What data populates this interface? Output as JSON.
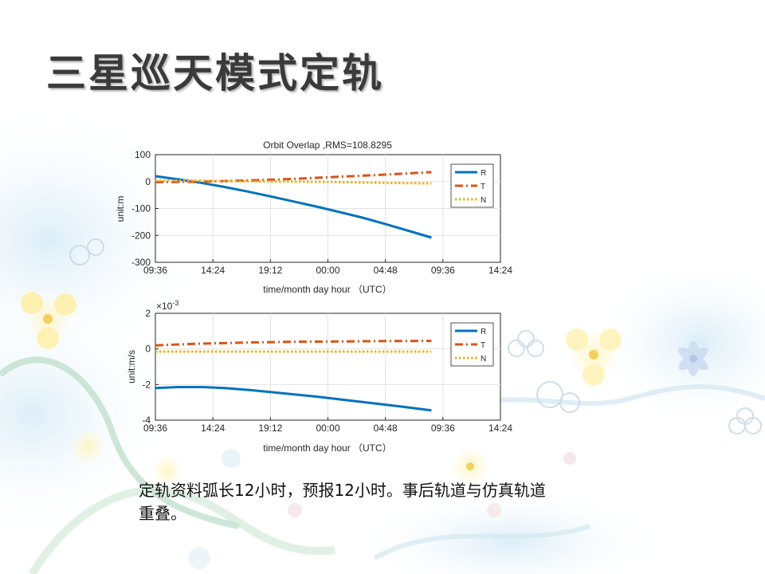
{
  "slide": {
    "title": "三星巡天模式定轨",
    "caption": "定轨资料弧长12小时，预报12小时。事后轨道与仿真轨道重叠。"
  },
  "chart_data": [
    {
      "type": "line",
      "title": "Orbit Overlap ,RMS=108.8295",
      "xlabel": "time/month day hour （UTC）",
      "ylabel": "unit:m",
      "x_ticks": [
        "09:36",
        "14:24",
        "19:12",
        "00:00",
        "04:48",
        "09:36",
        "14:24"
      ],
      "xlim": [
        0,
        30
      ],
      "x_unit": "hours since first tick 09:36",
      "ylim": [
        -300,
        100
      ],
      "y_ticks": [
        100,
        0,
        -100,
        -200,
        -300
      ],
      "grid": true,
      "legend_position": "top-right",
      "series": [
        {
          "name": "R",
          "color": "#0072BD",
          "style": "solid",
          "x": [
            0,
            2,
            4,
            6,
            8,
            10,
            12,
            14,
            16,
            18,
            20,
            22,
            24
          ],
          "y": [
            20,
            8,
            -5,
            -20,
            -37,
            -55,
            -74,
            -93,
            -113,
            -134,
            -158,
            -183,
            -208
          ]
        },
        {
          "name": "T",
          "color": "#D95319",
          "style": "dashdot",
          "x": [
            0,
            4,
            8,
            12,
            16,
            20,
            24
          ],
          "y": [
            -2,
            0,
            4,
            10,
            18,
            26,
            35
          ]
        },
        {
          "name": "N",
          "color": "#EDB120",
          "style": "dotted",
          "x": [
            0,
            4,
            8,
            12,
            16,
            20,
            24
          ],
          "y": [
            4,
            3,
            1,
            0,
            -2,
            -5,
            -7
          ]
        }
      ]
    },
    {
      "type": "line",
      "title": "",
      "exponent_label": "×10",
      "exponent_power": "-3",
      "xlabel": "time/month day hour （UTC）",
      "ylabel": "unit:m/s",
      "x_ticks": [
        "09:36",
        "14:24",
        "19:12",
        "00:00",
        "04:48",
        "09:36",
        "14:24"
      ],
      "xlim": [
        0,
        30
      ],
      "x_unit": "hours since first tick 09:36",
      "ylim": [
        -4,
        2
      ],
      "y_ticks": [
        2,
        0,
        -2,
        -4
      ],
      "grid": true,
      "legend_position": "top-right",
      "series": [
        {
          "name": "R",
          "color": "#0072BD",
          "style": "solid",
          "x": [
            0,
            2,
            4,
            6,
            8,
            10,
            12,
            14,
            16,
            18,
            20,
            22,
            24
          ],
          "y": [
            -2.2,
            -2.14,
            -2.14,
            -2.2,
            -2.3,
            -2.42,
            -2.55,
            -2.68,
            -2.83,
            -2.98,
            -3.13,
            -3.29,
            -3.45
          ]
        },
        {
          "name": "T",
          "color": "#D95319",
          "style": "dashdot",
          "x": [
            0,
            4,
            8,
            12,
            16,
            20,
            24
          ],
          "y": [
            0.2,
            0.3,
            0.36,
            0.4,
            0.42,
            0.44,
            0.45
          ]
        },
        {
          "name": "N",
          "color": "#EDB120",
          "style": "dotted",
          "x": [
            0,
            4,
            8,
            12,
            16,
            20,
            24
          ],
          "y": [
            -0.15,
            -0.15,
            -0.15,
            -0.15,
            -0.15,
            -0.15,
            -0.15
          ]
        }
      ]
    }
  ]
}
